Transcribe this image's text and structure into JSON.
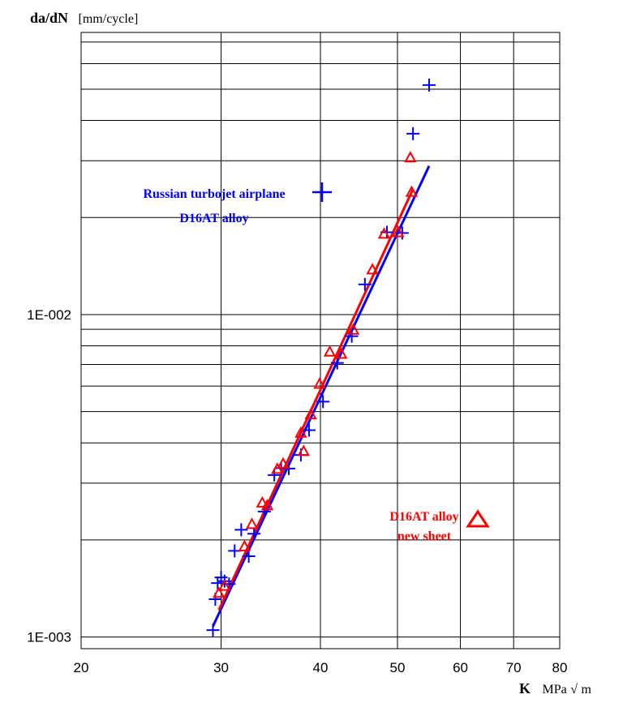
{
  "chart_data": {
    "type": "scatter",
    "x_scale": "log",
    "y_scale": "log",
    "xlim": [
      20,
      80
    ],
    "ylim": [
      0.00092,
      0.075
    ],
    "x_ticks": [
      20,
      30,
      40,
      50,
      60,
      70,
      80
    ],
    "x_tick_labels": [
      "20",
      "30",
      "40",
      "50",
      "60",
      "70",
      "80"
    ],
    "y_ticks": [
      0.001,
      0.01
    ],
    "y_tick_labels": [
      "1E-003",
      "1E-002"
    ],
    "grid": true,
    "ylabel_main": "da/dN",
    "ylabel_unit": "[mm/cycle]",
    "xlabel_main": "K",
    "xlabel_unit": "MPa",
    "xlabel_unit_suffix": "m",
    "series": [
      {
        "name": "Russian turbojet airplane D16AT alloy",
        "legend_line1": "Russian turbojet airplane",
        "legend_line2": "D16AT alloy",
        "color": "#0000ff",
        "marker": "plus",
        "points": [
          [
            29.3,
            0.00105
          ],
          [
            29.5,
            0.00131
          ],
          [
            29.7,
            0.00147
          ],
          [
            30.0,
            0.00153
          ],
          [
            30.3,
            0.00149
          ],
          [
            30.7,
            0.00146
          ],
          [
            31.2,
            0.00185
          ],
          [
            31.8,
            0.00215
          ],
          [
            32.5,
            0.00178
          ],
          [
            33.0,
            0.00209
          ],
          [
            34.0,
            0.00245
          ],
          [
            35.0,
            0.00318
          ],
          [
            35.7,
            0.00334
          ],
          [
            36.5,
            0.00333
          ],
          [
            37.8,
            0.00367
          ],
          [
            38.7,
            0.00438
          ],
          [
            40.3,
            0.00537
          ],
          [
            42.0,
            0.00708
          ],
          [
            43.8,
            0.00857
          ],
          [
            45.5,
            0.0124
          ],
          [
            48.5,
            0.018
          ],
          [
            50.7,
            0.0179
          ],
          [
            52.3,
            0.0364
          ],
          [
            54.8,
            0.0515
          ]
        ],
        "fit": [
          [
            29.3,
            0.00108
          ],
          [
            54.8,
            0.0289
          ]
        ]
      },
      {
        "name": "D16AT alloy new sheet",
        "legend_line1": "D16AT alloy",
        "legend_line2": "new sheet",
        "color": "#ff0000",
        "marker": "triangle",
        "points": [
          [
            29.8,
            0.00137
          ],
          [
            30.3,
            0.00144
          ],
          [
            32.1,
            0.00191
          ],
          [
            32.8,
            0.00224
          ],
          [
            33.8,
            0.00261
          ],
          [
            34.3,
            0.00256
          ],
          [
            35.3,
            0.00332
          ],
          [
            35.9,
            0.00345
          ],
          [
            37.8,
            0.0043
          ],
          [
            38.1,
            0.00377
          ],
          [
            38.9,
            0.0049
          ],
          [
            39.9,
            0.0061
          ],
          [
            41.1,
            0.00767
          ],
          [
            42.5,
            0.00755
          ],
          [
            44.0,
            0.00897
          ],
          [
            46.5,
            0.0138
          ],
          [
            48.1,
            0.0178
          ],
          [
            50.1,
            0.018
          ],
          [
            51.9,
            0.0307
          ],
          [
            52.1,
            0.024
          ]
        ],
        "fit": [
          [
            29.8,
            0.00121
          ],
          [
            52.3,
            0.0245
          ]
        ]
      }
    ]
  }
}
